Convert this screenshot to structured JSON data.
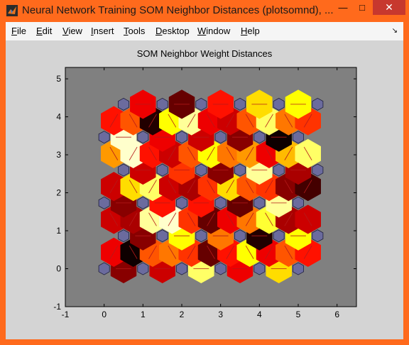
{
  "window": {
    "title": "Neural Network Training SOM Neighbor Distances (plotsomnd), ...",
    "minimize_glyph": "—",
    "maximize_glyph": "□",
    "close_glyph": "✕",
    "accent_color": "#ff6a1c"
  },
  "menu": {
    "items": [
      {
        "label": "File",
        "key": "F"
      },
      {
        "label": "Edit",
        "key": "E"
      },
      {
        "label": "View",
        "key": "V"
      },
      {
        "label": "Insert",
        "key": "I"
      },
      {
        "label": "Tools",
        "key": "T"
      },
      {
        "label": "Desktop",
        "key": "D"
      },
      {
        "label": "Window",
        "key": "W"
      },
      {
        "label": "Help",
        "key": "H"
      }
    ],
    "dock_glyph": "↘"
  },
  "chart_data": {
    "type": "heatmap",
    "title": "SOM Neighbor Weight Distances",
    "xlim": [
      -1,
      6.5
    ],
    "ylim": [
      -1,
      5.3
    ],
    "xticks": [
      -1,
      0,
      1,
      2,
      3,
      4,
      5,
      6
    ],
    "yticks": [
      -1,
      0,
      1,
      2,
      3,
      4,
      5
    ],
    "neuron_color": "#6b6b9e",
    "background_color": "#808080",
    "grid": "hexagonal 6x6 neurons",
    "neurons": [
      [
        0,
        0
      ],
      [
        1,
        0
      ],
      [
        2,
        0
      ],
      [
        3,
        0
      ],
      [
        4,
        0
      ],
      [
        5,
        0
      ],
      [
        0.5,
        0.866
      ],
      [
        1.5,
        0.866
      ],
      [
        2.5,
        0.866
      ],
      [
        3.5,
        0.866
      ],
      [
        4.5,
        0.866
      ],
      [
        5.5,
        0.866
      ],
      [
        0,
        1.732
      ],
      [
        1,
        1.732
      ],
      [
        2,
        1.732
      ],
      [
        3,
        1.732
      ],
      [
        4,
        1.732
      ],
      [
        5,
        1.732
      ],
      [
        0.5,
        2.598
      ],
      [
        1.5,
        2.598
      ],
      [
        2.5,
        2.598
      ],
      [
        3.5,
        2.598
      ],
      [
        4.5,
        2.598
      ],
      [
        5.5,
        2.598
      ],
      [
        0,
        3.464
      ],
      [
        1,
        3.464
      ],
      [
        2,
        3.464
      ],
      [
        3,
        3.464
      ],
      [
        4,
        3.464
      ],
      [
        5,
        3.464
      ],
      [
        0.5,
        4.33
      ],
      [
        1.5,
        4.33
      ],
      [
        2.5,
        4.33
      ],
      [
        3.5,
        4.33
      ],
      [
        4.5,
        4.33
      ],
      [
        5.5,
        4.33
      ]
    ],
    "distance_levels": [
      0.2,
      0.35,
      0.3,
      0.02,
      0.5,
      0.85,
      0.55,
      0.45,
      0.35,
      0.15,
      0.4,
      0.7,
      0.75,
      0.35,
      0.5,
      0.4,
      0.2,
      0.3,
      0.25,
      0.75,
      0.9,
      0.95,
      0.55,
      0.45,
      0.15,
      0.05,
      0.35,
      0.55,
      0.75,
      0.8,
      0.25,
      0.3,
      0.2,
      0.3,
      0.4,
      0.7,
      0.85,
      0.4,
      0.3,
      0.25,
      0.15,
      0.45,
      0.7,
      0.9,
      0.5,
      0.45,
      0.2,
      0.1,
      0.3,
      0.6,
      0.95,
      0.45,
      0.4,
      0.3,
      0.2,
      0.5,
      0.75,
      0.9,
      0.55,
      0.6,
      0.25,
      0.35,
      0.65,
      0.85,
      0.95,
      0.4,
      0.35,
      0.5,
      0.05,
      0.3,
      0.75,
      0.9
    ]
  }
}
